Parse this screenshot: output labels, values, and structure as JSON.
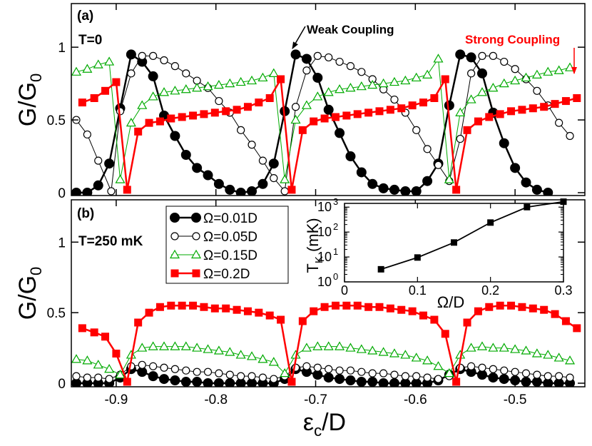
{
  "chart_data": [
    {
      "panel": "(a)",
      "type": "line",
      "annotation": "T=0",
      "ylabel": "G/G0",
      "ylabel_main": "G/G",
      "ylabel_sub": "0",
      "ylim": [
        0,
        1.3
      ],
      "yticks": [
        0,
        0.5,
        1
      ],
      "ytick_labels": [
        "0",
        "0.5",
        "1"
      ],
      "xlim": [
        -0.945,
        -0.43
      ],
      "callouts": [
        {
          "text": "Weak Coupling",
          "color": "#000000",
          "target": [
            -0.718,
            0.95
          ]
        },
        {
          "text": "Strong Coupling",
          "color": "#ff0000",
          "target": [
            -0.438,
            0.65
          ]
        }
      ],
      "series": [
        {
          "name": "Ω=0.01D",
          "color": "#000000",
          "marker": "filled-circle",
          "width": 2.5,
          "x": [
            -0.94,
            -0.929,
            -0.918,
            -0.907,
            -0.896,
            -0.885,
            -0.874,
            -0.863,
            -0.852,
            -0.841,
            -0.83,
            -0.819,
            -0.808,
            -0.797,
            -0.786,
            -0.775,
            -0.764,
            -0.753,
            -0.742,
            -0.731,
            -0.72,
            -0.709,
            -0.698,
            -0.687,
            -0.676,
            -0.665,
            -0.654,
            -0.643,
            -0.632,
            -0.621,
            -0.61,
            -0.599,
            -0.588,
            -0.577,
            -0.566,
            -0.555,
            -0.544,
            -0.533,
            -0.522,
            -0.511,
            -0.5,
            -0.489,
            -0.478,
            -0.467
          ],
          "y": [
            0,
            0,
            0.05,
            0.2,
            0.58,
            0.95,
            0.9,
            0.8,
            0.53,
            0.39,
            0.26,
            0.17,
            0.12,
            0.06,
            0.02,
            0,
            0.01,
            0.06,
            0.2,
            0.56,
            0.95,
            0.92,
            0.79,
            0.57,
            0.41,
            0.25,
            0.14,
            0.06,
            0.03,
            0.02,
            0.01,
            0.01,
            0.08,
            0.2,
            0.6,
            0.95,
            0.93,
            0.82,
            0.55,
            0.34,
            0.17,
            0.07,
            0.02,
            0
          ]
        },
        {
          "name": "Ω=0.05D",
          "color": "#000000",
          "marker": "open-circle",
          "width": 1,
          "x": [
            -0.94,
            -0.929,
            -0.918,
            -0.905,
            -0.896,
            -0.885,
            -0.874,
            -0.863,
            -0.852,
            -0.841,
            -0.83,
            -0.819,
            -0.808,
            -0.797,
            -0.786,
            -0.775,
            -0.764,
            -0.753,
            -0.742,
            -0.731,
            -0.72,
            -0.709,
            -0.698,
            -0.687,
            -0.676,
            -0.665,
            -0.654,
            -0.643,
            -0.632,
            -0.621,
            -0.61,
            -0.599,
            -0.588,
            -0.577,
            -0.566,
            -0.555,
            -0.544,
            -0.533,
            -0.522,
            -0.511,
            -0.5,
            -0.489,
            -0.478,
            -0.467,
            -0.456,
            -0.445
          ],
          "y": [
            0.5,
            0.4,
            0.22,
            0.01,
            0.56,
            0.82,
            0.94,
            0.94,
            0.91,
            0.87,
            0.82,
            0.77,
            0.72,
            0.63,
            0.55,
            0.43,
            0.33,
            0.22,
            0.1,
            0.01,
            0.59,
            0.84,
            0.94,
            0.93,
            0.9,
            0.87,
            0.83,
            0.78,
            0.71,
            0.64,
            0.55,
            0.43,
            0.3,
            0.19,
            0.08,
            0.37,
            0.82,
            0.94,
            0.94,
            0.9,
            0.85,
            0.78,
            0.7,
            0.6,
            0.48,
            0.39
          ]
        },
        {
          "name": "Ω=0.15D",
          "color": "#00aa00",
          "marker": "open-triangle",
          "width": 1,
          "x": [
            -0.94,
            -0.929,
            -0.918,
            -0.907,
            -0.896,
            -0.885,
            -0.874,
            -0.863,
            -0.852,
            -0.841,
            -0.83,
            -0.819,
            -0.808,
            -0.797,
            -0.786,
            -0.775,
            -0.764,
            -0.753,
            -0.742,
            -0.731,
            -0.72,
            -0.709,
            -0.698,
            -0.687,
            -0.676,
            -0.665,
            -0.654,
            -0.643,
            -0.632,
            -0.621,
            -0.61,
            -0.599,
            -0.588,
            -0.577,
            -0.566,
            -0.555,
            -0.544,
            -0.533,
            -0.522,
            -0.511,
            -0.5,
            -0.489,
            -0.478,
            -0.467,
            -0.456,
            -0.445
          ],
          "y": [
            0.83,
            0.85,
            0.88,
            0.9,
            0.09,
            0.48,
            0.6,
            0.66,
            0.69,
            0.7,
            0.71,
            0.72,
            0.73,
            0.74,
            0.75,
            0.76,
            0.77,
            0.79,
            0.82,
            0.09,
            0.5,
            0.6,
            0.66,
            0.69,
            0.71,
            0.72,
            0.73,
            0.74,
            0.75,
            0.76,
            0.77,
            0.79,
            0.81,
            0.92,
            0.09,
            0.55,
            0.64,
            0.69,
            0.72,
            0.75,
            0.77,
            0.79,
            0.81,
            0.83,
            0.84,
            0.86
          ]
        },
        {
          "name": "Ω=0.2D",
          "color": "#ff0000",
          "marker": "filled-square",
          "width": 2.5,
          "x": [
            -0.934,
            -0.922,
            -0.911,
            -0.9,
            -0.889,
            -0.878,
            -0.867,
            -0.856,
            -0.845,
            -0.834,
            -0.823,
            -0.812,
            -0.801,
            -0.79,
            -0.779,
            -0.768,
            -0.757,
            -0.746,
            -0.735,
            -0.724,
            -0.713,
            -0.702,
            -0.691,
            -0.68,
            -0.669,
            -0.658,
            -0.647,
            -0.636,
            -0.625,
            -0.614,
            -0.603,
            -0.592,
            -0.581,
            -0.57,
            -0.559,
            -0.548,
            -0.537,
            -0.526,
            -0.515,
            -0.504,
            -0.493,
            -0.482,
            -0.471,
            -0.46,
            -0.449,
            -0.438
          ],
          "y": [
            0.62,
            0.65,
            0.7,
            0.76,
            0.02,
            0.42,
            0.48,
            0.49,
            0.51,
            0.52,
            0.53,
            0.54,
            0.55,
            0.56,
            0.57,
            0.59,
            0.62,
            0.65,
            0.78,
            0.02,
            0.43,
            0.49,
            0.51,
            0.52,
            0.53,
            0.54,
            0.55,
            0.56,
            0.57,
            0.58,
            0.6,
            0.62,
            0.65,
            0.78,
            0.02,
            0.43,
            0.49,
            0.52,
            0.54,
            0.56,
            0.57,
            0.58,
            0.59,
            0.61,
            0.63,
            0.65
          ]
        }
      ]
    },
    {
      "panel": "(b)",
      "type": "line",
      "annotation": "T=250 mK",
      "ylabel": "G/G0",
      "ylabel_main": "G/G",
      "ylabel_sub": "0",
      "ylim": [
        0,
        1.3
      ],
      "yticks": [
        0,
        0.5,
        1
      ],
      "ytick_labels": [
        "0",
        "0.5",
        "1"
      ],
      "xlim": [
        -0.945,
        -0.43
      ],
      "xlabel": "εc/D",
      "xlabel_main": "ε",
      "xlabel_sub": "c",
      "xlabel_tail": "/D",
      "xticks": [
        -0.9,
        -0.8,
        -0.7,
        -0.6,
        -0.5
      ],
      "xtick_labels": [
        "-0.9",
        "-0.8",
        "-0.7",
        "-0.6",
        "-0.5"
      ],
      "legend": {
        "position": "top-left",
        "entries": [
          "Ω=0.01D",
          "Ω=0.05D",
          "Ω=0.15D",
          "Ω=0.2D"
        ]
      },
      "series": [
        {
          "name": "Ω=0.01D",
          "color": "#000000",
          "marker": "filled-circle",
          "width": 2.5,
          "x": [
            -0.94,
            -0.929,
            -0.918,
            -0.907,
            -0.896,
            -0.885,
            -0.874,
            -0.863,
            -0.852,
            -0.841,
            -0.83,
            -0.819,
            -0.808,
            -0.797,
            -0.786,
            -0.775,
            -0.764,
            -0.753,
            -0.742,
            -0.731,
            -0.72,
            -0.709,
            -0.698,
            -0.687,
            -0.676,
            -0.665,
            -0.654,
            -0.643,
            -0.632,
            -0.621,
            -0.61,
            -0.599,
            -0.588,
            -0.577,
            -0.566,
            -0.555,
            -0.544,
            -0.533,
            -0.522,
            -0.511,
            -0.5,
            -0.489,
            -0.478,
            -0.467,
            -0.456,
            -0.445
          ],
          "y": [
            0,
            0,
            0,
            0,
            0.04,
            0.1,
            0.08,
            0.05,
            0.03,
            0.02,
            0.01,
            0.01,
            0,
            0,
            0,
            0,
            0,
            0,
            0,
            0.03,
            0.1,
            0.08,
            0.06,
            0.04,
            0.03,
            0.02,
            0.01,
            0.01,
            0,
            0,
            0,
            0,
            0,
            0.02,
            0.06,
            0.1,
            0.08,
            0.06,
            0.04,
            0.03,
            0.02,
            0.01,
            0.01,
            0,
            0,
            0
          ]
        },
        {
          "name": "Ω=0.05D",
          "color": "#000000",
          "marker": "open-circle",
          "width": 1,
          "x": [
            -0.94,
            -0.929,
            -0.918,
            -0.907,
            -0.896,
            -0.885,
            -0.874,
            -0.863,
            -0.852,
            -0.841,
            -0.83,
            -0.819,
            -0.808,
            -0.797,
            -0.786,
            -0.775,
            -0.764,
            -0.753,
            -0.742,
            -0.731,
            -0.72,
            -0.709,
            -0.698,
            -0.687,
            -0.676,
            -0.665,
            -0.654,
            -0.643,
            -0.632,
            -0.621,
            -0.61,
            -0.599,
            -0.588,
            -0.577,
            -0.566,
            -0.555,
            -0.544,
            -0.533,
            -0.522,
            -0.511,
            -0.5,
            -0.489,
            -0.478,
            -0.467,
            -0.456,
            -0.445
          ],
          "y": [
            0.05,
            0.04,
            0.04,
            0.03,
            0.06,
            0.12,
            0.13,
            0.12,
            0.11,
            0.1,
            0.09,
            0.08,
            0.08,
            0.07,
            0.06,
            0.05,
            0.05,
            0.04,
            0.03,
            0.05,
            0.11,
            0.12,
            0.11,
            0.1,
            0.09,
            0.09,
            0.08,
            0.07,
            0.07,
            0.06,
            0.05,
            0.05,
            0.04,
            0.03,
            0.05,
            0.11,
            0.12,
            0.11,
            0.1,
            0.09,
            0.08,
            0.07,
            0.06,
            0.05,
            0.05,
            0.04
          ]
        },
        {
          "name": "Ω=0.15D",
          "color": "#00aa00",
          "marker": "open-triangle",
          "width": 1,
          "x": [
            -0.94,
            -0.929,
            -0.918,
            -0.907,
            -0.896,
            -0.885,
            -0.874,
            -0.863,
            -0.852,
            -0.841,
            -0.83,
            -0.819,
            -0.808,
            -0.797,
            -0.786,
            -0.775,
            -0.764,
            -0.753,
            -0.742,
            -0.731,
            -0.72,
            -0.709,
            -0.698,
            -0.687,
            -0.676,
            -0.665,
            -0.654,
            -0.643,
            -0.632,
            -0.621,
            -0.61,
            -0.599,
            -0.588,
            -0.577,
            -0.566,
            -0.555,
            -0.544,
            -0.533,
            -0.522,
            -0.511,
            -0.5,
            -0.489,
            -0.478,
            -0.467,
            -0.456,
            -0.445
          ],
          "y": [
            0.17,
            0.16,
            0.13,
            0.1,
            0.06,
            0.2,
            0.25,
            0.26,
            0.26,
            0.26,
            0.26,
            0.25,
            0.24,
            0.23,
            0.22,
            0.2,
            0.19,
            0.17,
            0.15,
            0.07,
            0.2,
            0.25,
            0.26,
            0.26,
            0.26,
            0.25,
            0.24,
            0.23,
            0.22,
            0.21,
            0.2,
            0.18,
            0.16,
            0.12,
            0.07,
            0.2,
            0.25,
            0.26,
            0.25,
            0.25,
            0.24,
            0.23,
            0.21,
            0.2,
            0.18,
            0.16
          ]
        },
        {
          "name": "Ω=0.2D",
          "color": "#ff0000",
          "marker": "filled-square",
          "width": 2.5,
          "x": [
            -0.934,
            -0.922,
            -0.911,
            -0.9,
            -0.889,
            -0.878,
            -0.867,
            -0.856,
            -0.845,
            -0.834,
            -0.823,
            -0.812,
            -0.801,
            -0.79,
            -0.779,
            -0.768,
            -0.757,
            -0.746,
            -0.735,
            -0.724,
            -0.713,
            -0.702,
            -0.691,
            -0.68,
            -0.669,
            -0.658,
            -0.647,
            -0.636,
            -0.625,
            -0.614,
            -0.603,
            -0.592,
            -0.581,
            -0.57,
            -0.559,
            -0.548,
            -0.537,
            -0.526,
            -0.515,
            -0.504,
            -0.493,
            -0.482,
            -0.471,
            -0.46,
            -0.449,
            -0.438
          ],
          "y": [
            0.39,
            0.36,
            0.33,
            0.21,
            0.01,
            0.43,
            0.5,
            0.54,
            0.55,
            0.55,
            0.55,
            0.54,
            0.53,
            0.53,
            0.52,
            0.51,
            0.5,
            0.48,
            0.45,
            0.01,
            0.44,
            0.51,
            0.54,
            0.55,
            0.55,
            0.55,
            0.54,
            0.54,
            0.53,
            0.52,
            0.51,
            0.48,
            0.45,
            0.35,
            0.01,
            0.43,
            0.51,
            0.54,
            0.55,
            0.55,
            0.54,
            0.53,
            0.52,
            0.49,
            0.44,
            0.39
          ]
        }
      ],
      "inset": {
        "type": "line",
        "xlabel": "Ω/D",
        "ylabel": "TK (mK)",
        "ylabel_main": "T",
        "ylabel_sub": "K",
        "ylabel_tail": " (mK)",
        "xlim": [
          0,
          0.3
        ],
        "xticks": [
          0,
          0.1,
          0.2,
          0.3
        ],
        "xtick_labels": [
          "0",
          "0.1",
          "0.2",
          "0.3"
        ],
        "ylim_log10": [
          0,
          3.15
        ],
        "ytick_exponents": [
          0,
          1,
          2,
          3
        ],
        "ytick_base": "10",
        "ytick_sups": [
          "0",
          "1",
          "2",
          "3"
        ],
        "x": [
          0.05,
          0.1,
          0.15,
          0.2,
          0.25,
          0.3
        ],
        "y": [
          3.2,
          9.5,
          38,
          240,
          1000,
          1650
        ]
      }
    }
  ]
}
